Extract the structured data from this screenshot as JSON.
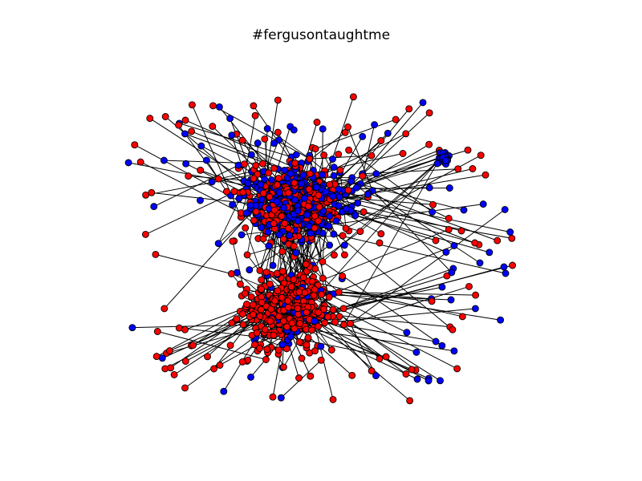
{
  "title": "#fergusontaughtme",
  "graph": {
    "type": "network",
    "edge_color": "#000000",
    "node_stroke": "#000000",
    "communities": [
      {
        "name": "red",
        "color": "#ff0000"
      },
      {
        "name": "blue",
        "color": "#0000ff"
      }
    ]
  }
}
